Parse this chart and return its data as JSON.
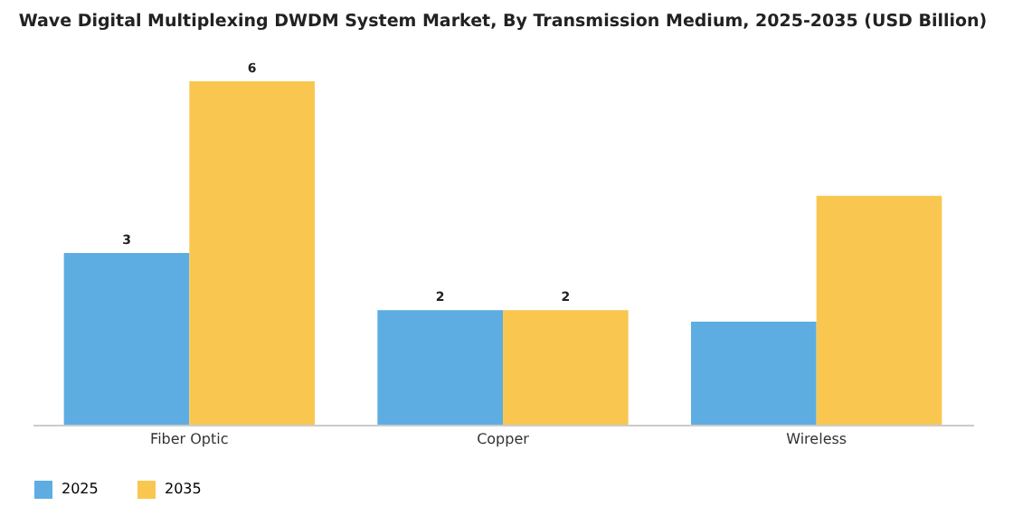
{
  "chart_data": {
    "type": "bar",
    "title": "Wave Digital Multiplexing DWDM System Market, By Transmission Medium, 2025-2035 (USD Billion)",
    "categories": [
      "Fiber Optic",
      "Copper",
      "Wireless"
    ],
    "legend": "bottom",
    "series": [
      {
        "name": "2025",
        "color": "#5dade2",
        "values": [
          3,
          2,
          1.8
        ],
        "value_labels": [
          "3",
          "2",
          null
        ]
      },
      {
        "name": "2035",
        "color": "#f9c74f",
        "values": [
          6,
          2,
          4
        ],
        "value_labels": [
          "6",
          "2",
          null
        ]
      }
    ]
  }
}
